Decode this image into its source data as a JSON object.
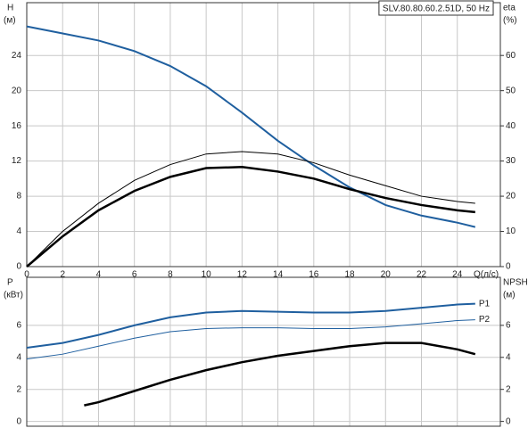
{
  "chart_data": [
    {
      "type": "line",
      "title": "SLV.80.80.60.2.51D, 50 Hz",
      "ylabel": "H",
      "yunit": "(м)",
      "y2label": "eta",
      "y2unit": "(%)",
      "xlabel": "Q(л/с)",
      "xlim": [
        0,
        26.4
      ],
      "xticks": [
        0,
        2,
        4,
        6,
        8,
        10,
        12,
        14,
        16,
        18,
        20,
        22,
        24
      ],
      "ylim": [
        0,
        30
      ],
      "yticks": [
        0,
        4,
        8,
        12,
        16,
        20,
        24
      ],
      "y2lim": [
        0,
        75
      ],
      "y2ticks": [
        0,
        10,
        20,
        30,
        40,
        50,
        60
      ],
      "grid": true,
      "series": [
        {
          "color": "#1f5f9f",
          "width": 2,
          "x": [
            0,
            2,
            4,
            6,
            8,
            10,
            12,
            14,
            16,
            18,
            20,
            22,
            24,
            25
          ],
          "values": [
            27.3,
            26.5,
            25.7,
            24.5,
            22.8,
            20.5,
            17.5,
            14.3,
            11.5,
            9,
            7,
            5.8,
            5,
            4.5
          ]
        },
        {
          "color": "#000000",
          "width": 2.5,
          "axis": "y2",
          "x": [
            0,
            2,
            4,
            6,
            8,
            10,
            12,
            14,
            16,
            18,
            20,
            22,
            24,
            25
          ],
          "values": [
            0,
            8.6,
            16,
            21.5,
            25.5,
            28,
            28.3,
            27,
            25,
            22,
            19.5,
            17.5,
            16,
            15.5
          ]
        },
        {
          "color": "#000000",
          "width": 1,
          "axis": "y2",
          "x": [
            0,
            2,
            4,
            6,
            8,
            10,
            12,
            14,
            16,
            18,
            20,
            22,
            24,
            25
          ],
          "values": [
            0,
            10,
            18,
            24.5,
            29,
            32,
            32.7,
            32,
            29.5,
            26,
            23,
            20,
            18.5,
            18
          ]
        }
      ]
    },
    {
      "type": "line",
      "ylabel": "P",
      "yunit": "(кВт)",
      "y2label": "NPSH",
      "y2unit": "(м)",
      "xlim": [
        0,
        26.4
      ],
      "xticks": [
        0,
        2,
        4,
        6,
        8,
        10,
        12,
        14,
        16,
        18,
        20,
        22,
        24
      ],
      "ylim": [
        -0.3,
        9
      ],
      "yticks": [
        0,
        2,
        4,
        6
      ],
      "y2lim": [
        -0.3,
        9
      ],
      "y2ticks": [
        0,
        2,
        4,
        6
      ],
      "grid": true,
      "series": [
        {
          "name": "P1",
          "color": "#1f5f9f",
          "width": 2,
          "x": [
            0,
            2,
            4,
            6,
            8,
            10,
            12,
            14,
            16,
            18,
            20,
            22,
            24,
            25
          ],
          "values": [
            4.6,
            4.9,
            5.4,
            6.0,
            6.5,
            6.8,
            6.9,
            6.85,
            6.8,
            6.8,
            6.9,
            7.1,
            7.3,
            7.35
          ]
        },
        {
          "name": "P2",
          "color": "#1f5f9f",
          "width": 1,
          "x": [
            0,
            2,
            4,
            6,
            8,
            10,
            12,
            14,
            16,
            18,
            20,
            22,
            24,
            25
          ],
          "values": [
            3.9,
            4.2,
            4.7,
            5.2,
            5.6,
            5.8,
            5.85,
            5.85,
            5.8,
            5.8,
            5.9,
            6.1,
            6.3,
            6.35
          ]
        },
        {
          "color": "#000000",
          "width": 2.5,
          "axis": "y2",
          "x": [
            3.2,
            4,
            6,
            8,
            10,
            12,
            14,
            16,
            18,
            20,
            22,
            24,
            25
          ],
          "values": [
            1.0,
            1.2,
            1.9,
            2.6,
            3.2,
            3.7,
            4.1,
            4.4,
            4.7,
            4.9,
            4.9,
            4.5,
            4.2
          ]
        }
      ]
    }
  ]
}
